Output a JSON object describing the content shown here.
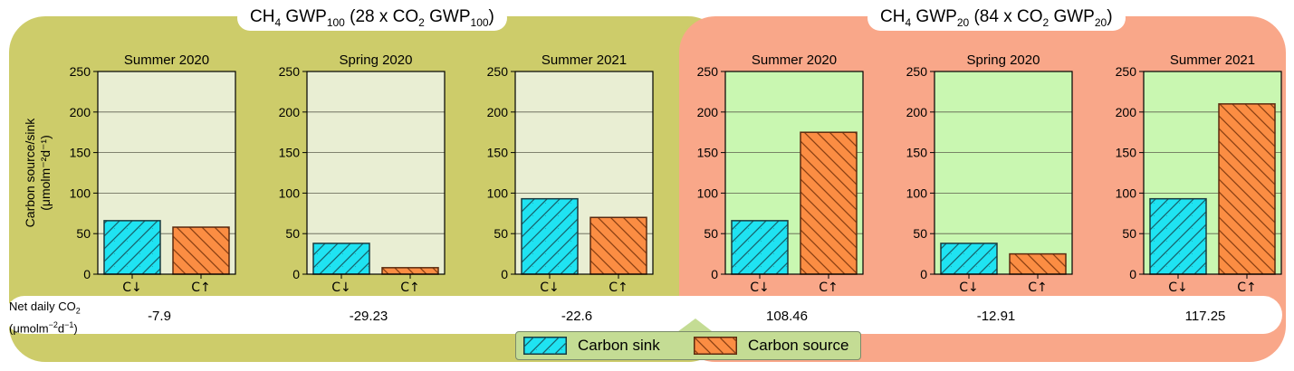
{
  "panels": [
    {
      "title_main": "CH",
      "title_sub1": "4",
      "title_gwp": " GWP",
      "title_sub2": "100",
      "title_rest": " (28 x CO",
      "title_sub3": "2",
      "title_gwp2": " GWP",
      "title_sub4": "100",
      "title_end": ")",
      "background": "#cdcc6a",
      "plot_bg": "#e9eed3"
    },
    {
      "title_main": "CH",
      "title_sub1": "4",
      "title_gwp": " GWP",
      "title_sub2": "20",
      "title_rest": " (84 x CO",
      "title_sub3": "2",
      "title_gwp2": " GWP",
      "title_sub4": "20",
      "title_end": ")",
      "background": "#f9a789",
      "plot_bg": "#c9f7b1"
    }
  ],
  "y_axis_label_line1": "Carbon source/sink",
  "y_axis_label_line2": "(μmolm⁻²d⁻¹)",
  "net_label": {
    "line1_a": "Net daily CO",
    "line1_sub": "2",
    "line2_a": "(μmolm",
    "line2_sup": "−2",
    "line2_b": "d",
    "line2_sup2": "−1",
    "line2_c": ")"
  },
  "legend": {
    "sink": "Carbon sink",
    "source": "Carbon source",
    "sink_color": "#1fe3f2",
    "source_color": "#fb8d43"
  },
  "chart_data": {
    "type": "bar",
    "categories": [
      "C↓",
      "C↑"
    ],
    "ylim": [
      0,
      250
    ],
    "yticks": [
      0,
      50,
      100,
      150,
      200,
      250
    ],
    "charts": [
      {
        "panel": 0,
        "title": "Summer 2020",
        "values": [
          66,
          58
        ],
        "net": "-7.9"
      },
      {
        "panel": 0,
        "title": "Spring 2020",
        "values": [
          38,
          8
        ],
        "net": "-29.23"
      },
      {
        "panel": 0,
        "title": "Summer 2021",
        "values": [
          93,
          70
        ],
        "net": "-22.6"
      },
      {
        "panel": 1,
        "title": "Summer 2020",
        "values": [
          66,
          175
        ],
        "net": "108.46"
      },
      {
        "panel": 1,
        "title": "Spring 2020",
        "values": [
          38,
          25
        ],
        "net": "-12.91"
      },
      {
        "panel": 1,
        "title": "Summer 2021",
        "values": [
          93,
          210
        ],
        "net": "117.25"
      }
    ]
  }
}
